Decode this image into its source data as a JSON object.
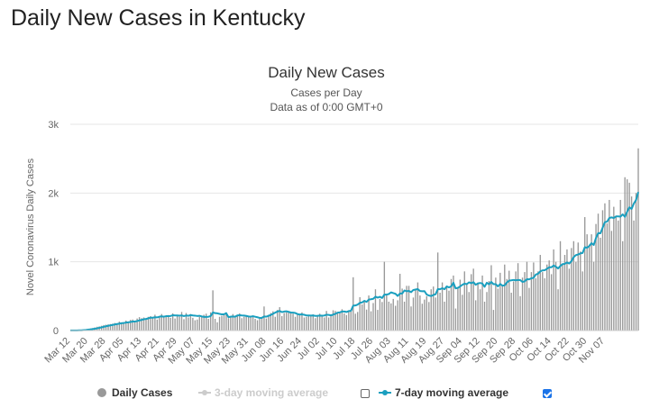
{
  "page": {
    "heading": "Daily New Cases in Kentucky"
  },
  "colors": {
    "bars": "#999999",
    "avg7": "#1a9fbf",
    "avg3_disabled": "#cccccc",
    "checkbox_checked": "#1a73e8",
    "gridline": "#e6e6e6"
  },
  "legend": {
    "daily_cases": "Daily Cases",
    "avg3": "3-day moving average",
    "avg7": "7-day moving average",
    "avg3_checked": false,
    "avg7_checked": true
  },
  "chart_data": {
    "type": "bar",
    "title": "Daily New Cases",
    "subtitle_1": "Cases per Day",
    "subtitle_2": "Data as of 0:00 GMT+0",
    "ylabel": "Novel Coronavirus Daily Cases",
    "xlabel": "",
    "ylim": [
      0,
      3000
    ],
    "yticks": [
      0,
      1000,
      2000,
      3000
    ],
    "ytick_labels": [
      "0",
      "1k",
      "2k",
      "3k"
    ],
    "grid": true,
    "legend_position": "bottom",
    "x_tick_labels": [
      "Mar 12",
      "Mar 20",
      "Mar 28",
      "Apr 05",
      "Apr 13",
      "Apr 21",
      "Apr 29",
      "May 07",
      "May 15",
      "May 23",
      "May 31",
      "Jun 08",
      "Jun 16",
      "Jun 24",
      "Jul 02",
      "Jul 10",
      "Jul 18",
      "Jul 26",
      "Aug 03",
      "Aug 11",
      "Aug 19",
      "Aug 27",
      "Sep 04",
      "Sep 12",
      "Sep 20",
      "Sep 28",
      "Oct 06",
      "Oct 14",
      "Oct 22",
      "Oct 30",
      "Nov 07"
    ],
    "x_tick_every_days": 8,
    "series": [
      {
        "name": "Daily Cases",
        "values": [
          1,
          1,
          2,
          4,
          6,
          10,
          15,
          20,
          25,
          30,
          35,
          45,
          55,
          60,
          70,
          80,
          85,
          90,
          95,
          100,
          110,
          100,
          130,
          110,
          120,
          145,
          130,
          155,
          160,
          120,
          175,
          195,
          180,
          190,
          160,
          200,
          210,
          180,
          230,
          160,
          210,
          240,
          195,
          215,
          225,
          185,
          250,
          175,
          220,
          200,
          270,
          165,
          255,
          190,
          240,
          185,
          150,
          160,
          200,
          215,
          230,
          245,
          170,
          265,
          585,
          170,
          120,
          200,
          215,
          230,
          260,
          180,
          210,
          240,
          190,
          230,
          250,
          180,
          200,
          220,
          195,
          205,
          215,
          170,
          150,
          185,
          200,
          350,
          175,
          230,
          255,
          280,
          200,
          300,
          340,
          210,
          255,
          265,
          280,
          270,
          245,
          200,
          230,
          240,
          265,
          190,
          200,
          215,
          220,
          235,
          180,
          220,
          245,
          205,
          190,
          285,
          190,
          215,
          295,
          285,
          255,
          275,
          310,
          250,
          225,
          280,
          295,
          775,
          245,
          270,
          485,
          380,
          430,
          305,
          510,
          280,
          400,
          600,
          300,
          460,
          415,
          1000,
          520,
          420,
          395,
          460,
          360,
          440,
          825,
          610,
          420,
          650,
          650,
          350,
          480,
          610,
          700,
          510,
          390,
          450,
          500,
          415,
          600,
          640,
          480,
          1135,
          550,
          700,
          420,
          650,
          580,
          750,
          800,
          320,
          630,
          740,
          520,
          860,
          690,
          560,
          820,
          900,
          440,
          700,
          600,
          800,
          420,
          560,
          720,
          950,
          300,
          770,
          610,
          840,
          660,
          960,
          750,
          870,
          550,
          715,
          860,
          980,
          500,
          770,
          850,
          1000,
          620,
          850,
          990,
          760,
          860,
          1100,
          850,
          760,
          960,
          1020,
          820,
          1180,
          1000,
          600,
          1300,
          960,
          1100,
          1180,
          900,
          1200,
          1300,
          1000,
          1280,
          1150,
          860,
          1650,
          1400,
          1250,
          1400,
          1000,
          1550,
          1700,
          1350,
          1750,
          1850,
          1560,
          1900,
          1450,
          1800,
          1650,
          1600,
          1900,
          1300,
          2230,
          2200,
          2150,
          1950,
          1600,
          2000,
          2650
        ]
      },
      {
        "name": "7-day moving average",
        "values": [
          1,
          1,
          1,
          2,
          3,
          4,
          6,
          9,
          13,
          16,
          21,
          26,
          32,
          39,
          46,
          54,
          62,
          69,
          75,
          82,
          89,
          95,
          100,
          106,
          109,
          116,
          119,
          124,
          131,
          131,
          138,
          147,
          154,
          164,
          169,
          177,
          187,
          187,
          193,
          191,
          201,
          206,
          202,
          209,
          210,
          212,
          222,
          220,
          220,
          216,
          220,
          210,
          219,
          214,
          225,
          219,
          217,
          212,
          215,
          205,
          198,
          198,
          200,
          210,
          262,
          254,
          250,
          242,
          235,
          236,
          253,
          195,
          201,
          204,
          201,
          220,
          222,
          219,
          218,
          213,
          205,
          202,
          209,
          201,
          193,
          184,
          184,
          205,
          202,
          214,
          226,
          244,
          261,
          276,
          285,
          268,
          276,
          280,
          272,
          262,
          261,
          255,
          240,
          233,
          235,
          229,
          220,
          219,
          218,
          219,
          213,
          215,
          218,
          217,
          218,
          230,
          227,
          221,
          231,
          243,
          260,
          264,
          276,
          277,
          270,
          283,
          286,
          362,
          365,
          378,
          403,
          409,
          432,
          417,
          450,
          455,
          462,
          492,
          479,
          491,
          473,
          523,
          523,
          531,
          555,
          545,
          534,
          503,
          539,
          539,
          582,
          572,
          577,
          558,
          590,
          596,
          603,
          575,
          572,
          573,
          524,
          509,
          502,
          517,
          528,
          602,
          601,
          616,
          601,
          642,
          628,
          642,
          695,
          613,
          621,
          641,
          665,
          682,
          675,
          701,
          688,
          703,
          666,
          685,
          692,
          684,
          636,
          695,
          672,
          707,
          675,
          675,
          642,
          678,
          653,
          657,
          699,
          725,
          730,
          736,
          730,
          736,
          734,
          707,
          716,
          747,
          745,
          760,
          767,
          814,
          826,
          860,
          875,
          878,
          898,
          920,
          920,
          946,
          928,
          903,
          939,
          966,
          970,
          990,
          975,
          1009,
          1068,
          1097,
          1106,
          1122,
          1128,
          1212,
          1204,
          1230,
          1271,
          1245,
          1346,
          1417,
          1415,
          1496,
          1576,
          1584,
          1637,
          1646,
          1637,
          1660,
          1661,
          1657,
          1690,
          1654,
          1729,
          1792,
          1769,
          1847,
          1899,
          2014
        ]
      }
    ]
  }
}
